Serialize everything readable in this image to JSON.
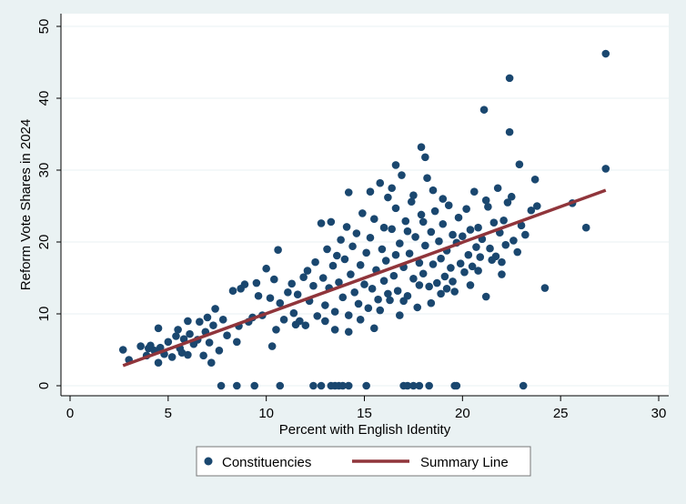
{
  "chart_data": {
    "type": "scatter",
    "xlabel": "Percent with English Identity",
    "ylabel": "Reform Vote Shares in 2024",
    "xlim": [
      0,
      30
    ],
    "ylim": [
      0,
      50
    ],
    "xticks": [
      "0",
      "5",
      "10",
      "15",
      "20",
      "25",
      "30"
    ],
    "yticks": [
      "0",
      "10",
      "20",
      "30",
      "40",
      "50"
    ],
    "grid": "horizontal",
    "legend_position": "bottom",
    "colors": {
      "points": "#1a476f",
      "line": "#90353b",
      "background": "#eaf2f3",
      "plot": "#ffffff"
    },
    "series": [
      {
        "name": "Constituencies",
        "points": [
          [
            2.7,
            5.0
          ],
          [
            3.0,
            3.6
          ],
          [
            3.6,
            5.5
          ],
          [
            3.9,
            4.2
          ],
          [
            4.0,
            5.2
          ],
          [
            4.1,
            5.6
          ],
          [
            4.3,
            4.9
          ],
          [
            4.5,
            3.2
          ],
          [
            4.5,
            8.0
          ],
          [
            4.6,
            5.3
          ],
          [
            4.8,
            4.4
          ],
          [
            5.0,
            6.1
          ],
          [
            5.2,
            4.0
          ],
          [
            5.4,
            6.9
          ],
          [
            5.5,
            7.8
          ],
          [
            5.6,
            5.2
          ],
          [
            5.7,
            4.6
          ],
          [
            5.8,
            6.5
          ],
          [
            6.0,
            4.3
          ],
          [
            6.1,
            7.2
          ],
          [
            6.3,
            5.8
          ],
          [
            6.5,
            6.4
          ],
          [
            6.6,
            8.9
          ],
          [
            6.8,
            4.2
          ],
          [
            6.9,
            7.5
          ],
          [
            7.1,
            6.0
          ],
          [
            7.2,
            3.2
          ],
          [
            7.3,
            8.4
          ],
          [
            7.4,
            10.7
          ],
          [
            7.6,
            4.9
          ],
          [
            7.8,
            9.2
          ],
          [
            8.0,
            7.0
          ],
          [
            8.3,
            13.2
          ],
          [
            8.5,
            6.1
          ],
          [
            8.6,
            8.3
          ],
          [
            8.7,
            13.5
          ],
          [
            8.9,
            14.1
          ],
          [
            9.1,
            8.9
          ],
          [
            9.3,
            9.5
          ],
          [
            9.5,
            14.3
          ],
          [
            9.6,
            12.5
          ],
          [
            9.8,
            9.8
          ],
          [
            10.0,
            16.3
          ],
          [
            10.2,
            12.2
          ],
          [
            10.3,
            5.5
          ],
          [
            10.4,
            14.8
          ],
          [
            10.5,
            7.8
          ],
          [
            10.6,
            18.9
          ],
          [
            10.7,
            11.5
          ],
          [
            10.9,
            9.2
          ],
          [
            11.1,
            13.0
          ],
          [
            11.3,
            14.2
          ],
          [
            11.4,
            10.1
          ],
          [
            11.6,
            12.7
          ],
          [
            11.7,
            9.0
          ],
          [
            11.9,
            15.1
          ],
          [
            12.1,
            16.0
          ],
          [
            12.2,
            11.8
          ],
          [
            12.4,
            13.9
          ],
          [
            12.5,
            17.2
          ],
          [
            12.6,
            9.7
          ],
          [
            12.8,
            22.6
          ],
          [
            12.9,
            15.0
          ],
          [
            13.0,
            11.2
          ],
          [
            13.1,
            19.0
          ],
          [
            13.2,
            13.6
          ],
          [
            13.3,
            22.8
          ],
          [
            13.4,
            16.7
          ],
          [
            13.5,
            10.3
          ],
          [
            13.6,
            18.1
          ],
          [
            13.7,
            14.4
          ],
          [
            13.8,
            20.3
          ],
          [
            13.9,
            12.3
          ],
          [
            14.0,
            17.6
          ],
          [
            14.1,
            22.1
          ],
          [
            14.2,
            9.8
          ],
          [
            14.2,
            26.9
          ],
          [
            14.3,
            15.5
          ],
          [
            14.4,
            19.4
          ],
          [
            14.5,
            13.0
          ],
          [
            14.6,
            21.2
          ],
          [
            14.7,
            11.4
          ],
          [
            14.8,
            16.8
          ],
          [
            14.9,
            24.0
          ],
          [
            15.0,
            14.1
          ],
          [
            15.1,
            18.5
          ],
          [
            15.2,
            10.8
          ],
          [
            15.3,
            20.6
          ],
          [
            15.4,
            13.5
          ],
          [
            15.5,
            23.2
          ],
          [
            15.6,
            16.1
          ],
          [
            15.7,
            12.0
          ],
          [
            15.8,
            28.2
          ],
          [
            15.9,
            19.0
          ],
          [
            16.0,
            14.6
          ],
          [
            16.1,
            17.4
          ],
          [
            16.2,
            26.2
          ],
          [
            16.3,
            11.9
          ],
          [
            16.4,
            21.8
          ],
          [
            16.5,
            15.3
          ],
          [
            16.6,
            24.7
          ],
          [
            16.6,
            30.7
          ],
          [
            16.7,
            13.2
          ],
          [
            16.8,
            19.8
          ],
          [
            16.9,
            29.3
          ],
          [
            17.0,
            16.5
          ],
          [
            17.1,
            22.9
          ],
          [
            17.2,
            12.5
          ],
          [
            17.3,
            18.4
          ],
          [
            17.4,
            25.6
          ],
          [
            17.5,
            14.9
          ],
          [
            17.6,
            20.7
          ],
          [
            17.7,
            10.9
          ],
          [
            17.8,
            17.1
          ],
          [
            17.9,
            23.8
          ],
          [
            17.9,
            33.2
          ],
          [
            18.0,
            15.6
          ],
          [
            18.1,
            19.5
          ],
          [
            18.1,
            31.8
          ],
          [
            18.2,
            28.9
          ],
          [
            18.3,
            13.8
          ],
          [
            18.4,
            21.4
          ],
          [
            18.5,
            16.9
          ],
          [
            18.6,
            24.3
          ],
          [
            18.7,
            14.3
          ],
          [
            18.8,
            20.1
          ],
          [
            18.9,
            17.7
          ],
          [
            19.0,
            22.5
          ],
          [
            19.1,
            15.2
          ],
          [
            19.2,
            18.8
          ],
          [
            19.3,
            25.1
          ],
          [
            19.4,
            16.4
          ],
          [
            19.5,
            21.0
          ],
          [
            19.6,
            13.1
          ],
          [
            19.7,
            19.9
          ],
          [
            19.8,
            23.4
          ],
          [
            19.9,
            17.0
          ],
          [
            20.0,
            20.8
          ],
          [
            20.1,
            15.8
          ],
          [
            20.2,
            24.6
          ],
          [
            20.3,
            18.2
          ],
          [
            20.4,
            21.7
          ],
          [
            20.5,
            16.6
          ],
          [
            20.6,
            27.0
          ],
          [
            20.7,
            19.3
          ],
          [
            20.8,
            22.0
          ],
          [
            20.9,
            17.9
          ],
          [
            21.0,
            20.4
          ],
          [
            21.1,
            38.4
          ],
          [
            21.2,
            12.4
          ],
          [
            21.3,
            24.9
          ],
          [
            21.4,
            19.1
          ],
          [
            21.6,
            22.7
          ],
          [
            21.7,
            18.0
          ],
          [
            21.9,
            21.3
          ],
          [
            22.0,
            17.2
          ],
          [
            22.1,
            23.0
          ],
          [
            22.2,
            19.6
          ],
          [
            22.4,
            42.8
          ],
          [
            22.4,
            35.3
          ],
          [
            22.5,
            26.3
          ],
          [
            22.6,
            20.2
          ],
          [
            22.8,
            18.6
          ],
          [
            22.9,
            30.8
          ],
          [
            23.0,
            22.3
          ],
          [
            23.2,
            21.0
          ],
          [
            23.5,
            24.4
          ],
          [
            23.7,
            28.7
          ],
          [
            23.8,
            25.0
          ],
          [
            24.2,
            13.6
          ],
          [
            25.6,
            25.4
          ],
          [
            26.3,
            22.0
          ],
          [
            27.3,
            46.2
          ],
          [
            27.3,
            30.2
          ],
          [
            15.5,
            8.0
          ],
          [
            14.2,
            7.5
          ],
          [
            16.8,
            9.8
          ],
          [
            12.0,
            8.4
          ],
          [
            13.0,
            9.0
          ],
          [
            17.5,
            26.5
          ],
          [
            16.4,
            27.5
          ],
          [
            18.5,
            27.2
          ],
          [
            19.0,
            26.0
          ],
          [
            15.3,
            27.0
          ],
          [
            16.0,
            22.0
          ],
          [
            17.2,
            21.5
          ],
          [
            18.0,
            22.8
          ],
          [
            16.6,
            18.2
          ],
          [
            17.8,
            14.0
          ],
          [
            18.9,
            12.8
          ],
          [
            19.5,
            14.5
          ],
          [
            20.4,
            14.0
          ],
          [
            20.8,
            16.0
          ],
          [
            21.5,
            17.5
          ],
          [
            22.0,
            15.5
          ],
          [
            22.3,
            25.5
          ],
          [
            21.8,
            27.5
          ],
          [
            21.2,
            25.8
          ],
          [
            14.8,
            9.2
          ],
          [
            15.8,
            10.5
          ],
          [
            16.2,
            12.8
          ],
          [
            17.0,
            11.8
          ],
          [
            18.4,
            11.5
          ],
          [
            19.2,
            13.5
          ],
          [
            13.5,
            7.8
          ],
          [
            11.5,
            8.5
          ],
          [
            6.0,
            9.0
          ],
          [
            7.0,
            9.5
          ],
          [
            7.7,
            0
          ],
          [
            8.5,
            0
          ],
          [
            9.4,
            0
          ],
          [
            10.7,
            0
          ],
          [
            12.4,
            0
          ],
          [
            12.8,
            0
          ],
          [
            13.3,
            0
          ],
          [
            13.5,
            0
          ],
          [
            13.7,
            0
          ],
          [
            13.9,
            0
          ],
          [
            14.2,
            0
          ],
          [
            15.1,
            0
          ],
          [
            17.0,
            0
          ],
          [
            17.2,
            0
          ],
          [
            17.5,
            0
          ],
          [
            17.8,
            0
          ],
          [
            18.3,
            0
          ],
          [
            19.6,
            0
          ],
          [
            19.7,
            0
          ],
          [
            23.1,
            0
          ]
        ]
      },
      {
        "name": "Summary Line",
        "type": "line",
        "points": [
          [
            2.7,
            2.8
          ],
          [
            27.3,
            27.2
          ]
        ]
      }
    ]
  }
}
